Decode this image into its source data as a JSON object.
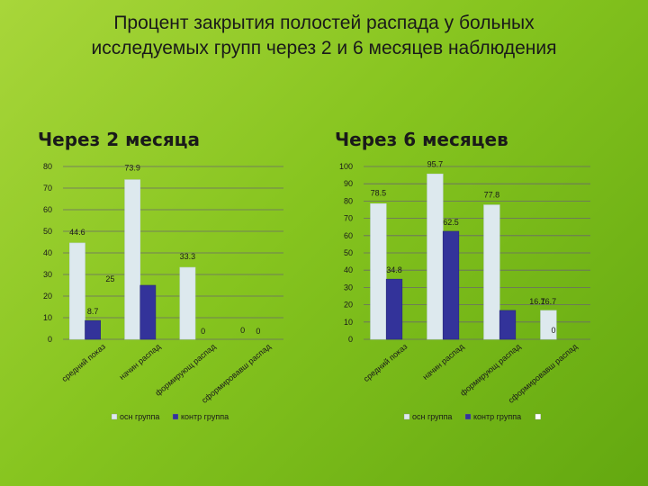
{
  "title_lines": [
    "Процент закрытия полостей распада у больных",
    "исследуемых групп через 2 и 6 месяцев наблюдения"
  ],
  "colors": {
    "osn": "#dde9ee",
    "kontr": "#33339a"
  },
  "chart_data": [
    {
      "type": "bar",
      "title": "Через 2 месяца",
      "categories": [
        "средний показ",
        "начин распад",
        "формирующ распад",
        "сформировавш распад"
      ],
      "series": [
        {
          "name": "осн группа",
          "values": [
            44.6,
            73.9,
            33.3,
            0
          ]
        },
        {
          "name": "контр группа",
          "values": [
            8.7,
            25,
            0,
            0
          ]
        }
      ],
      "data_labels": [
        {
          "text": "44.6",
          "series": 0,
          "category": 0
        },
        {
          "text": "73.9",
          "series": 0,
          "category": 1
        },
        {
          "text": "33.3",
          "series": 0,
          "category": 2
        },
        {
          "text": "0",
          "series": 0,
          "category": 3
        },
        {
          "text": "8.7",
          "series": 1,
          "category": 0
        },
        {
          "text": "25",
          "series": 1,
          "category": 1
        },
        {
          "text": "0",
          "series": 1,
          "category": 2
        },
        {
          "text": "0",
          "series": 1,
          "category": 3
        }
      ],
      "ylim": [
        0,
        80
      ],
      "yticks": [
        0,
        10,
        20,
        30,
        40,
        50,
        60,
        70,
        80
      ],
      "grid": true,
      "legend_position": "bottom",
      "legend": [
        "осн группа",
        "контр группа"
      ]
    },
    {
      "type": "bar",
      "title": "Через 6 месяцев",
      "categories": [
        "средний показ",
        "начин распад",
        "формирующ распад",
        "сформировавш распад"
      ],
      "series": [
        {
          "name": "осн группа",
          "values": [
            78.5,
            95.7,
            77.8,
            16.7
          ]
        },
        {
          "name": "контр группа",
          "values": [
            34.8,
            62.5,
            16.7,
            0
          ]
        }
      ],
      "data_labels": [
        {
          "text": "78.5",
          "series": 0,
          "category": 0
        },
        {
          "text": "95.7",
          "series": 0,
          "category": 1
        },
        {
          "text": "77.8",
          "series": 0,
          "category": 2
        },
        {
          "text": "16.7",
          "series": 0,
          "category": 3
        },
        {
          "text": "34.8",
          "series": 1,
          "category": 0
        },
        {
          "text": "62.5",
          "series": 1,
          "category": 1
        },
        {
          "text": "16.7",
          "series": 1,
          "category": 2
        },
        {
          "text": "0",
          "series": 1,
          "category": 3
        }
      ],
      "ylim": [
        0,
        100
      ],
      "yticks": [
        0,
        10,
        20,
        30,
        40,
        50,
        60,
        70,
        80,
        90,
        100
      ],
      "grid": true,
      "legend_position": "bottom",
      "legend": [
        "осн группа",
        "контр группа"
      ]
    }
  ]
}
